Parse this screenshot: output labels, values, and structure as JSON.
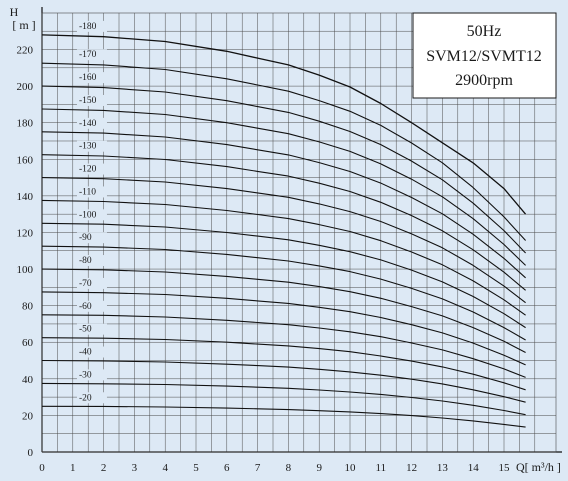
{
  "chart_data": {
    "type": "line",
    "title": "",
    "info_box": [
      "50Hz",
      "SVM12/SVMT12",
      "2900rpm"
    ],
    "xlabel": "Q[ m³/h ]",
    "ylabel": "H",
    "yunit": "[ m ]",
    "xlim": [
      0,
      16
    ],
    "ylim": [
      0,
      235
    ],
    "xticks": [
      0,
      1,
      2,
      3,
      4,
      5,
      6,
      7,
      8,
      9,
      10,
      11,
      12,
      13,
      14,
      15
    ],
    "yticks": [
      0,
      20,
      40,
      60,
      80,
      100,
      120,
      140,
      160,
      180,
      200,
      220
    ],
    "grid": true,
    "x": [
      0,
      2,
      4,
      6,
      7,
      8,
      9,
      10,
      11,
      12,
      13,
      14,
      15,
      15.7
    ],
    "series": [
      {
        "name": "-20",
        "values": [
          25,
          24.9,
          24.6,
          24,
          23.6,
          23.2,
          22.6,
          21.9,
          21,
          19.9,
          18.6,
          17,
          15.1,
          13.6
        ]
      },
      {
        "name": "-30",
        "values": [
          37.5,
          37.3,
          36.9,
          36,
          35.4,
          34.8,
          33.9,
          32.8,
          31.5,
          29.8,
          27.9,
          25.5,
          22.7,
          20.4
        ]
      },
      {
        "name": "-40",
        "values": [
          50,
          49.8,
          49.2,
          48,
          47.2,
          46.4,
          45.2,
          43.8,
          42,
          39.8,
          37.2,
          34,
          30.2,
          27.2
        ]
      },
      {
        "name": "-50",
        "values": [
          62.5,
          62.2,
          61.5,
          60,
          59,
          58,
          56.5,
          54.8,
          52.5,
          49.7,
          46.5,
          42.5,
          37.8,
          34
        ]
      },
      {
        "name": "-60",
        "values": [
          75,
          74.7,
          73.8,
          72,
          70.8,
          69.6,
          67.8,
          65.7,
          63,
          59.6,
          55.8,
          51,
          45.4,
          40.8
        ]
      },
      {
        "name": "-70",
        "values": [
          87.5,
          87.1,
          86.1,
          84,
          82.6,
          81.2,
          79.1,
          76.7,
          73.5,
          69.6,
          65.1,
          59.5,
          52.9,
          47.6
        ]
      },
      {
        "name": "-80",
        "values": [
          100,
          99.6,
          98.4,
          96,
          94.4,
          92.8,
          90.4,
          87.6,
          84,
          79.5,
          74.4,
          68,
          60.5,
          54.4
        ]
      },
      {
        "name": "-90",
        "values": [
          112.5,
          112,
          110.7,
          108,
          106.2,
          104.4,
          101.7,
          98.6,
          94.5,
          89.4,
          83.7,
          76.5,
          68,
          61.2
        ]
      },
      {
        "name": "-100",
        "values": [
          125,
          124.5,
          123,
          120,
          118,
          116,
          113,
          109.5,
          105,
          99.4,
          93,
          85,
          75.6,
          68
        ]
      },
      {
        "name": "-110",
        "values": [
          137.5,
          136.9,
          135.3,
          132,
          129.8,
          127.6,
          124.3,
          120.5,
          115.5,
          109.3,
          102.3,
          93.5,
          83.2,
          74.8
        ]
      },
      {
        "name": "-120",
        "values": [
          150,
          149.4,
          147.6,
          144,
          141.6,
          139.2,
          135.6,
          131.4,
          126,
          119.2,
          111.6,
          102,
          90.7,
          81.6
        ]
      },
      {
        "name": "-130",
        "values": [
          162.5,
          161.8,
          159.9,
          156,
          153.4,
          150.8,
          146.9,
          142.4,
          136.5,
          129.2,
          120.9,
          110.5,
          98.3,
          88.4
        ]
      },
      {
        "name": "-140",
        "values": [
          175,
          174.3,
          172.2,
          168,
          165.2,
          162.4,
          158.2,
          153.3,
          147,
          139.1,
          130.2,
          119,
          105.8,
          95.2
        ]
      },
      {
        "name": "-150",
        "values": [
          187.5,
          186.7,
          184.5,
          180,
          177,
          174,
          169.5,
          164.3,
          157.5,
          149.1,
          139.5,
          127.5,
          113.4,
          102
        ]
      },
      {
        "name": "-160",
        "values": [
          200,
          199.2,
          196.8,
          192,
          188.8,
          185.6,
          180.8,
          175.2,
          168,
          159,
          148.8,
          136,
          121,
          108.8
        ]
      },
      {
        "name": "-170",
        "values": [
          212.5,
          211.6,
          209.1,
          204,
          200.6,
          197.2,
          192.1,
          186.2,
          178.5,
          168.9,
          158.1,
          144.5,
          128.5,
          115.6
        ]
      },
      {
        "name": "-180",
        "values": [
          228,
          227,
          224.4,
          219,
          215.3,
          211.6,
          206,
          199.5,
          190.5,
          180,
          169,
          158,
          144,
          130
        ]
      }
    ]
  }
}
